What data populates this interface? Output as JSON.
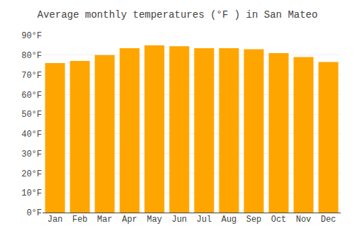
{
  "chart_data": {
    "type": "bar",
    "title": "Average monthly temperatures (°F ) in San Mateo",
    "categories": [
      "Jan",
      "Feb",
      "Mar",
      "Apr",
      "May",
      "Jun",
      "Jul",
      "Aug",
      "Sep",
      "Oct",
      "Nov",
      "Dec"
    ],
    "values": [
      76,
      77,
      80,
      83.5,
      85,
      84.5,
      83.5,
      83.5,
      83,
      81,
      79,
      76.5
    ],
    "color": "#FFA500",
    "ylim": [
      0,
      90
    ],
    "yticks": [
      {
        "value": 0,
        "label": "0°F"
      },
      {
        "value": 10,
        "label": "10°F"
      },
      {
        "value": 20,
        "label": "20°F"
      },
      {
        "value": 30,
        "label": "30°F"
      },
      {
        "value": 40,
        "label": "40°F"
      },
      {
        "value": 50,
        "label": "50°F"
      },
      {
        "value": 60,
        "label": "60°F"
      },
      {
        "value": 70,
        "label": "70°F"
      },
      {
        "value": 80,
        "label": "80°F"
      },
      {
        "value": 90,
        "label": "90°F"
      }
    ],
    "grid": true
  }
}
